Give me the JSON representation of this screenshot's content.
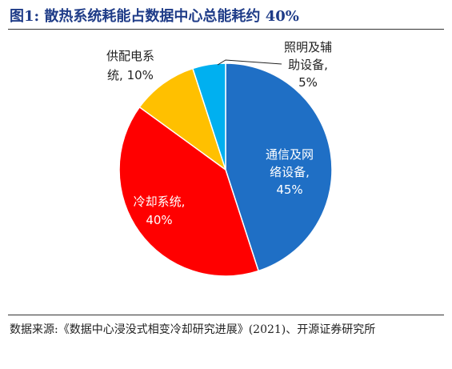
{
  "header": {
    "title": "图1: 散热系统耗能占数据中心总能耗约 40%"
  },
  "footer": {
    "source": "数据来源:《数据中心浸没式相变冷却研究进展》(2021)、开源证券研究所"
  },
  "chart_data": {
    "type": "pie",
    "slices": [
      {
        "label_lines": [
          "通信及网",
          "络设备,",
          "45%"
        ],
        "value": 45,
        "color": "#1f6fc5"
      },
      {
        "label_lines": [
          "冷却系统,",
          "40%"
        ],
        "value": 40,
        "color": "#ff0000"
      },
      {
        "label_lines": [
          "供配电系",
          "统, 10%"
        ],
        "value": 10,
        "color": "#ffc000"
      },
      {
        "label_lines": [
          "照明及辅",
          "助设备,",
          "5%"
        ],
        "value": 5,
        "color": "#00b0f0"
      }
    ]
  }
}
